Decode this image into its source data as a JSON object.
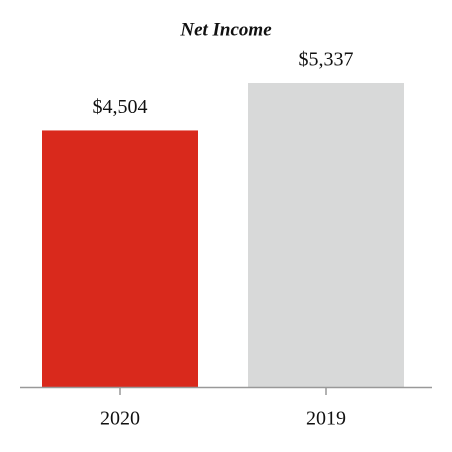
{
  "chart_data": {
    "type": "bar",
    "title": "Net Income",
    "categories": [
      "2020",
      "2019"
    ],
    "values": [
      4504,
      5337
    ],
    "value_labels": [
      "$4,504",
      "$5,337"
    ],
    "colors": [
      "#d9291c",
      "#d8d9d9"
    ]
  }
}
